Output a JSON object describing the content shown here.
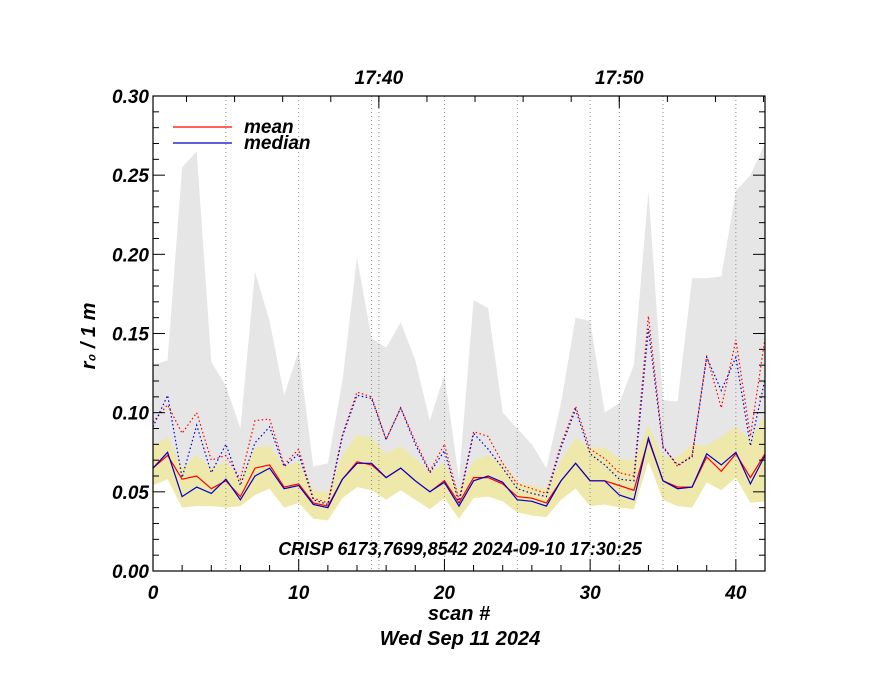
{
  "chart_data": {
    "type": "line",
    "ylabel": "r₀ / 1 m",
    "xlabel": "scan #",
    "date_label": "Wed Sep 11 2024",
    "annotation": "CRISP 6173,7699,8542 2024-09-10 17:30:25",
    "xlim": [
      0,
      42
    ],
    "ylim": [
      0,
      0.3
    ],
    "x_ticks": [
      0,
      10,
      20,
      30,
      40
    ],
    "x_tick_labels": [
      "0",
      "10",
      "20",
      "30",
      "40"
    ],
    "y_ticks": [
      0.0,
      0.05,
      0.1,
      0.15,
      0.2,
      0.25,
      0.3
    ],
    "y_tick_labels": [
      "0.00",
      "0.05",
      "0.10",
      "0.15",
      "0.20",
      "0.25",
      "0.30"
    ],
    "time_ticks": [
      {
        "label": "17:40",
        "x": 15.5
      },
      {
        "label": "17:50",
        "x": 32.0
      }
    ],
    "legend": {
      "placement": "top-left",
      "entries": [
        {
          "label": "mean",
          "color": "#ff0000"
        },
        {
          "label": "median",
          "color": "#0000cc"
        }
      ]
    },
    "x": [
      0,
      1,
      2,
      3,
      4,
      5,
      6,
      7,
      8,
      9,
      10,
      11,
      12,
      13,
      14,
      15,
      16,
      17,
      18,
      19,
      20,
      21,
      22,
      23,
      24,
      25,
      26,
      27,
      28,
      29,
      30,
      31,
      32,
      33,
      34,
      35,
      36,
      37,
      38,
      39,
      40,
      41,
      42
    ],
    "series": [
      {
        "name": "mean",
        "style": "solid",
        "color": "#ff0000",
        "values": [
          0.065,
          0.073,
          0.058,
          0.06,
          0.052,
          0.057,
          0.047,
          0.065,
          0.067,
          0.053,
          0.055,
          0.043,
          0.041,
          0.058,
          0.069,
          0.067,
          0.059,
          0.065,
          0.057,
          0.05,
          0.057,
          0.043,
          0.059,
          0.059,
          0.055,
          0.047,
          0.046,
          0.043,
          0.057,
          0.068,
          0.057,
          0.057,
          0.054,
          0.051,
          0.083,
          0.057,
          0.053,
          0.053,
          0.072,
          0.063,
          0.074,
          0.059,
          0.074
        ]
      },
      {
        "name": "median",
        "style": "solid",
        "color": "#0000cc",
        "values": [
          0.065,
          0.075,
          0.047,
          0.053,
          0.049,
          0.058,
          0.045,
          0.06,
          0.065,
          0.052,
          0.054,
          0.042,
          0.04,
          0.058,
          0.068,
          0.068,
          0.059,
          0.065,
          0.057,
          0.05,
          0.056,
          0.041,
          0.057,
          0.06,
          0.056,
          0.045,
          0.044,
          0.041,
          0.057,
          0.068,
          0.057,
          0.057,
          0.048,
          0.045,
          0.084,
          0.057,
          0.052,
          0.053,
          0.074,
          0.067,
          0.075,
          0.055,
          0.073
        ]
      },
      {
        "name": "mean (dotted)",
        "style": "dotted",
        "color": "#ff0000",
        "values": [
          0.094,
          0.105,
          0.087,
          0.1,
          0.07,
          0.073,
          0.058,
          0.095,
          0.096,
          0.067,
          0.077,
          0.046,
          0.043,
          0.086,
          0.113,
          0.11,
          0.083,
          0.103,
          0.082,
          0.063,
          0.08,
          0.045,
          0.088,
          0.085,
          0.068,
          0.055,
          0.052,
          0.049,
          0.08,
          0.104,
          0.077,
          0.071,
          0.062,
          0.06,
          0.161,
          0.079,
          0.066,
          0.073,
          0.136,
          0.103,
          0.146,
          0.085,
          0.147
        ]
      },
      {
        "name": "median (dotted)",
        "style": "dotted",
        "color": "#0000cc",
        "values": [
          0.091,
          0.111,
          0.059,
          0.092,
          0.062,
          0.08,
          0.054,
          0.081,
          0.091,
          0.066,
          0.074,
          0.045,
          0.042,
          0.085,
          0.111,
          0.109,
          0.083,
          0.103,
          0.08,
          0.062,
          0.076,
          0.043,
          0.087,
          0.077,
          0.065,
          0.052,
          0.049,
          0.047,
          0.078,
          0.102,
          0.074,
          0.067,
          0.058,
          0.057,
          0.153,
          0.078,
          0.067,
          0.072,
          0.135,
          0.114,
          0.135,
          0.079,
          0.121
        ]
      }
    ],
    "bands": [
      {
        "color": "#e6e6e6",
        "upper": [
          0.13,
          0.133,
          0.255,
          0.265,
          0.132,
          0.117,
          0.09,
          0.189,
          0.158,
          0.111,
          0.139,
          0.066,
          0.068,
          0.12,
          0.198,
          0.147,
          0.141,
          0.157,
          0.133,
          0.095,
          0.124,
          0.058,
          0.171,
          0.166,
          0.1,
          0.09,
          0.08,
          0.065,
          0.106,
          0.16,
          0.158,
          0.1,
          0.106,
          0.13,
          0.24,
          0.108,
          0.107,
          0.185,
          0.185,
          0.186,
          0.24,
          0.25,
          0.27
        ],
        "lower": [
          0.06,
          0.065,
          0.048,
          0.052,
          0.048,
          0.052,
          0.045,
          0.06,
          0.062,
          0.05,
          0.052,
          0.04,
          0.038,
          0.055,
          0.065,
          0.063,
          0.057,
          0.062,
          0.055,
          0.048,
          0.054,
          0.039,
          0.055,
          0.057,
          0.053,
          0.044,
          0.043,
          0.04,
          0.055,
          0.065,
          0.055,
          0.055,
          0.048,
          0.044,
          0.08,
          0.055,
          0.05,
          0.05,
          0.07,
          0.062,
          0.072,
          0.054,
          0.072
        ]
      },
      {
        "color": "#eee8aa",
        "upper": [
          0.078,
          0.085,
          0.065,
          0.073,
          0.065,
          0.069,
          0.058,
          0.078,
          0.079,
          0.066,
          0.069,
          0.051,
          0.05,
          0.073,
          0.086,
          0.084,
          0.074,
          0.079,
          0.071,
          0.063,
          0.068,
          0.051,
          0.07,
          0.073,
          0.068,
          0.056,
          0.054,
          0.052,
          0.07,
          0.084,
          0.078,
          0.078,
          0.071,
          0.07,
          0.092,
          0.072,
          0.072,
          0.08,
          0.079,
          0.085,
          0.091,
          0.083,
          0.098
        ]
      },
      {
        "color": "#eee8aa",
        "lower": [
          0.054,
          0.058,
          0.04,
          0.041,
          0.041,
          0.04,
          0.041,
          0.048,
          0.052,
          0.04,
          0.043,
          0.033,
          0.032,
          0.046,
          0.053,
          0.051,
          0.045,
          0.051,
          0.045,
          0.039,
          0.046,
          0.033,
          0.046,
          0.047,
          0.044,
          0.037,
          0.035,
          0.034,
          0.045,
          0.052,
          0.041,
          0.042,
          0.04,
          0.039,
          0.069,
          0.045,
          0.041,
          0.04,
          0.056,
          0.051,
          0.059,
          0.043,
          0.044
        ]
      }
    ],
    "vertical_gridlines": [
      5,
      10,
      15,
      20,
      25,
      30,
      35,
      40
    ],
    "grid": "vertical-dotted"
  }
}
